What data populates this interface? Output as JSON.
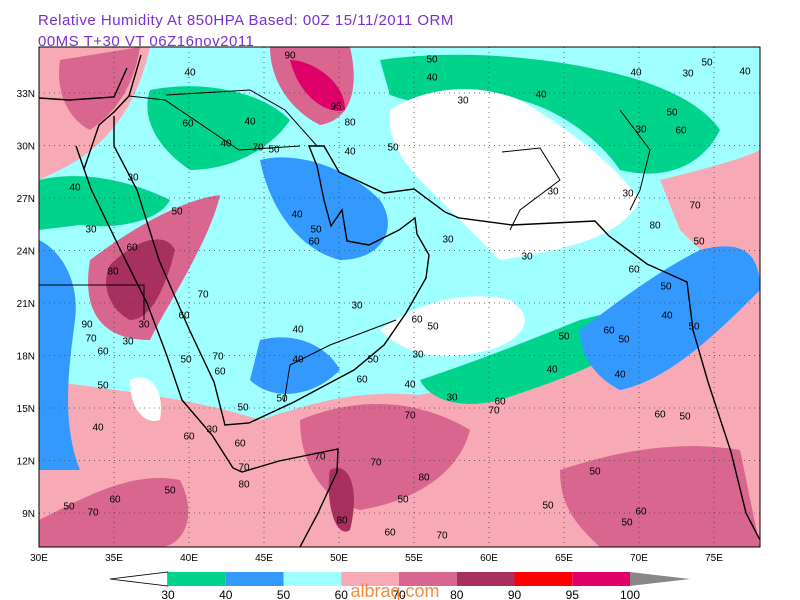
{
  "header": {
    "title": "Relative Humidity At 850HPA   Based: 00Z  15/11/2011  ORM",
    "subtitle": "00MS  T+30 VT 06Z16nov2011"
  },
  "map": {
    "lon_labels": [
      "30E",
      "35E",
      "40E",
      "45E",
      "50E",
      "55E",
      "60E",
      "65E",
      "70E",
      "75E"
    ],
    "lat_labels": [
      "33N",
      "30N",
      "27N",
      "24N",
      "21N",
      "18N",
      "15N",
      "12N",
      "9N"
    ],
    "contour_labels": [
      "40",
      "50",
      "40",
      "30",
      "40",
      "40",
      "30",
      "50",
      "40",
      "50",
      "60",
      "30",
      "60",
      "40",
      "40",
      "70",
      "50",
      "50",
      "40",
      "30",
      "40",
      "50",
      "30",
      "30",
      "70",
      "40",
      "50",
      "60",
      "30",
      "60",
      "30",
      "30",
      "80",
      "50",
      "60",
      "80",
      "70",
      "50",
      "30",
      "60",
      "40",
      "50",
      "90",
      "30",
      "70",
      "60",
      "30",
      "50",
      "60",
      "50",
      "60",
      "50",
      "40",
      "50",
      "40",
      "70",
      "50",
      "30",
      "40",
      "40",
      "50",
      "60",
      "60",
      "40",
      "30",
      "50",
      "70",
      "60",
      "60",
      "50",
      "40",
      "50",
      "70",
      "60",
      "30",
      "60",
      "70",
      "70",
      "80",
      "50",
      "60",
      "50",
      "70",
      "80",
      "50",
      "50",
      "60",
      "50",
      "50",
      "70",
      "80",
      "60",
      "70",
      "95",
      "80",
      "90"
    ]
  },
  "legend": {
    "labels": [
      "30",
      "40",
      "50",
      "60",
      "70",
      "80",
      "90",
      "95",
      "100"
    ]
  },
  "watermark": "albraq.com"
}
